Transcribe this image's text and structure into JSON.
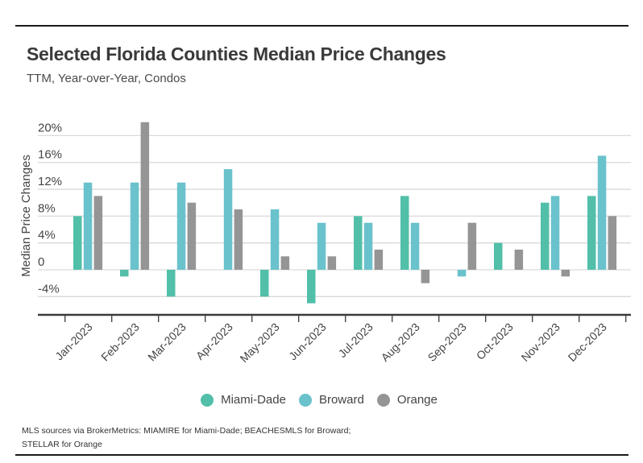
{
  "header": {
    "title": "Selected Florida Counties Median Price Changes",
    "subtitle": "TTM, Year-over-Year, Condos"
  },
  "footer": {
    "source_line1": "MLS sources via BrokerMetrics: MIAMIRE for Miami-Dade; BEACHESMLS for Broward;",
    "source_line2": "STELLAR for Orange"
  },
  "chart_data": {
    "type": "bar",
    "title": "Selected Florida Counties Median Price Changes",
    "subtitle": "TTM, Year-over-Year, Condos",
    "xlabel": "",
    "ylabel": "Median Price Changes",
    "ylim": [
      -7,
      22
    ],
    "yticks": [
      -4,
      0,
      4,
      8,
      12,
      16,
      20
    ],
    "ytick_labels": [
      "-4%",
      "0",
      "4%",
      "8%",
      "12%",
      "16%",
      "20%"
    ],
    "grid": true,
    "legend_position": "bottom-center",
    "categories": [
      "Jan-2023",
      "Feb-2023",
      "Mar-2023",
      "Apr-2023",
      "May-2023",
      "Jun-2023",
      "Jul-2023",
      "Aug-2023",
      "Sep-2023",
      "Oct-2023",
      "Nov-2023",
      "Dec-2023"
    ],
    "series": [
      {
        "name": "Miami-Dade",
        "color": "#52bfa9",
        "values": [
          8,
          -1,
          -4,
          0,
          -4,
          -5,
          8,
          11,
          0,
          4,
          10,
          11
        ]
      },
      {
        "name": "Broward",
        "color": "#6ac2cc",
        "values": [
          13,
          13,
          13,
          15,
          9,
          7,
          7,
          7,
          -1,
          0,
          11,
          17
        ]
      },
      {
        "name": "Orange",
        "color": "#959595",
        "values": [
          11,
          22,
          10,
          9,
          2,
          2,
          3,
          -2,
          7,
          3,
          -1,
          8
        ]
      }
    ]
  }
}
